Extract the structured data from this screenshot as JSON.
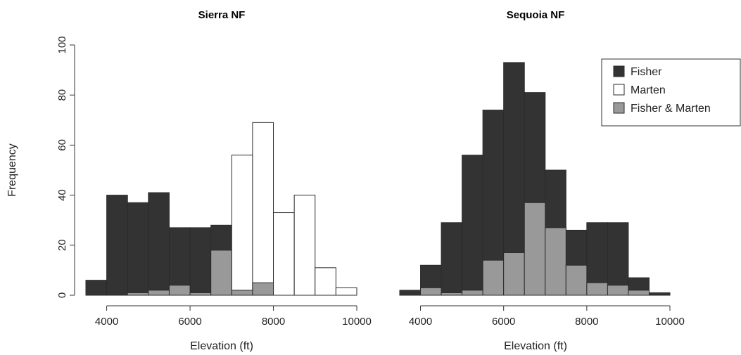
{
  "chart_data": [
    {
      "type": "bar",
      "title": "Sierra NF",
      "xlabel": "Elevation (ft)",
      "ylabel": "Frequency",
      "xlim": [
        3500,
        10000
      ],
      "ylim": [
        0,
        100
      ],
      "xticks": [
        4000,
        6000,
        8000,
        10000
      ],
      "yticks": [
        0,
        20,
        40,
        60,
        80,
        100
      ],
      "bin_edges": [
        3500,
        4000,
        4500,
        5000,
        5500,
        6000,
        6500,
        7000,
        7500,
        8000,
        8500,
        9000,
        9500,
        10000
      ],
      "series": [
        {
          "name": "Fisher",
          "color": "#333333",
          "values": [
            6,
            40,
            37,
            41,
            27,
            27,
            28,
            0,
            0,
            0,
            0,
            0,
            0
          ]
        },
        {
          "name": "Marten",
          "color": "#ffffff",
          "values": [
            0,
            0,
            0,
            0,
            0,
            0,
            0,
            56,
            69,
            33,
            40,
            11,
            3
          ]
        },
        {
          "name": "Fisher & Marten",
          "color": "#999999",
          "values": [
            0,
            0,
            1,
            2,
            4,
            1,
            18,
            2,
            5,
            0,
            0,
            0,
            0
          ]
        }
      ]
    },
    {
      "type": "bar",
      "title": "Sequoia NF",
      "xlabel": "Elevation (ft)",
      "xlim": [
        3500,
        10000
      ],
      "xticks": [
        4000,
        6000,
        8000,
        10000
      ],
      "bin_edges": [
        3500,
        4000,
        4500,
        5000,
        5500,
        6000,
        6500,
        7000,
        7500,
        8000,
        8500,
        9000,
        9500,
        10000
      ],
      "legend_position": "top-right",
      "series": [
        {
          "name": "Fisher",
          "color": "#333333",
          "values": [
            2,
            12,
            29,
            56,
            74,
            93,
            81,
            50,
            26,
            29,
            29,
            7,
            1
          ]
        },
        {
          "name": "Marten",
          "color": "#ffffff",
          "values": [
            0,
            0,
            0,
            0,
            0,
            0,
            0,
            0,
            0,
            0,
            0,
            0,
            0
          ]
        },
        {
          "name": "Fisher & Marten",
          "color": "#999999",
          "values": [
            0,
            3,
            1,
            2,
            14,
            17,
            37,
            27,
            12,
            5,
            4,
            2,
            0
          ]
        }
      ]
    }
  ],
  "legend": {
    "items": [
      {
        "label": "Fisher",
        "color": "#333333"
      },
      {
        "label": "Marten",
        "color": "#ffffff"
      },
      {
        "label": "Fisher & Marten",
        "color": "#999999"
      }
    ]
  }
}
